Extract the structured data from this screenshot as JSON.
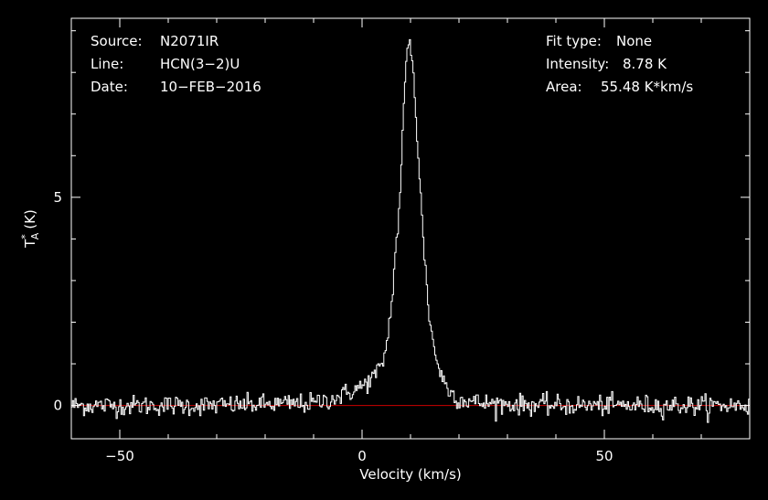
{
  "header": {
    "source_label": "Source:",
    "source_value": "N2071IR",
    "line_label": "Line:",
    "line_value": "HCN(3−2)U",
    "date_label": "Date:",
    "date_value": "10−FEB−2016",
    "fit_label": "Fit type:",
    "fit_value": "None",
    "intensity_label": "Intensity:",
    "intensity_value": "8.78 K",
    "area_label": "Area:",
    "area_value": "55.48 K*km/s"
  },
  "colors": {
    "background": "#000000",
    "spectrum": "#ffffff",
    "baseline": "#cc0000",
    "axes": "#ffffff"
  },
  "chart_data": {
    "type": "line",
    "xlabel": "Velocity (km/s)",
    "ylabel": "T*A (K)",
    "xlim": [
      -60,
      80
    ],
    "ylim": [
      -0.8,
      9.3
    ],
    "x_ticks": [
      -50,
      0,
      50
    ],
    "x_tick_labels": [
      "−50",
      "0",
      "50"
    ],
    "y_ticks": [
      0,
      5
    ],
    "y_tick_labels": [
      "0",
      "5"
    ],
    "baseline_y": 0,
    "grid": false,
    "series": [
      {
        "style": "histogram",
        "peak_velocity": 9.7,
        "peak_intensity": 8.78,
        "noise_rms": 0.12,
        "x": [
          -60,
          -30,
          -10,
          -5,
          0,
          2,
          4,
          5,
          6,
          7,
          7.5,
          8,
          8.5,
          9,
          9.5,
          10,
          10.5,
          11,
          11.5,
          12,
          13,
          14,
          15,
          16,
          17,
          18,
          20,
          25,
          40,
          80
        ],
        "values": [
          0,
          0,
          0.05,
          0.2,
          0.45,
          0.65,
          0.9,
          1.4,
          2.3,
          3.8,
          4.4,
          5.5,
          6.8,
          8.0,
          8.7,
          8.65,
          8.2,
          7.3,
          6.2,
          5.2,
          3.4,
          2.0,
          1.3,
          0.85,
          0.55,
          0.35,
          0.15,
          0.05,
          0,
          0
        ]
      }
    ]
  }
}
